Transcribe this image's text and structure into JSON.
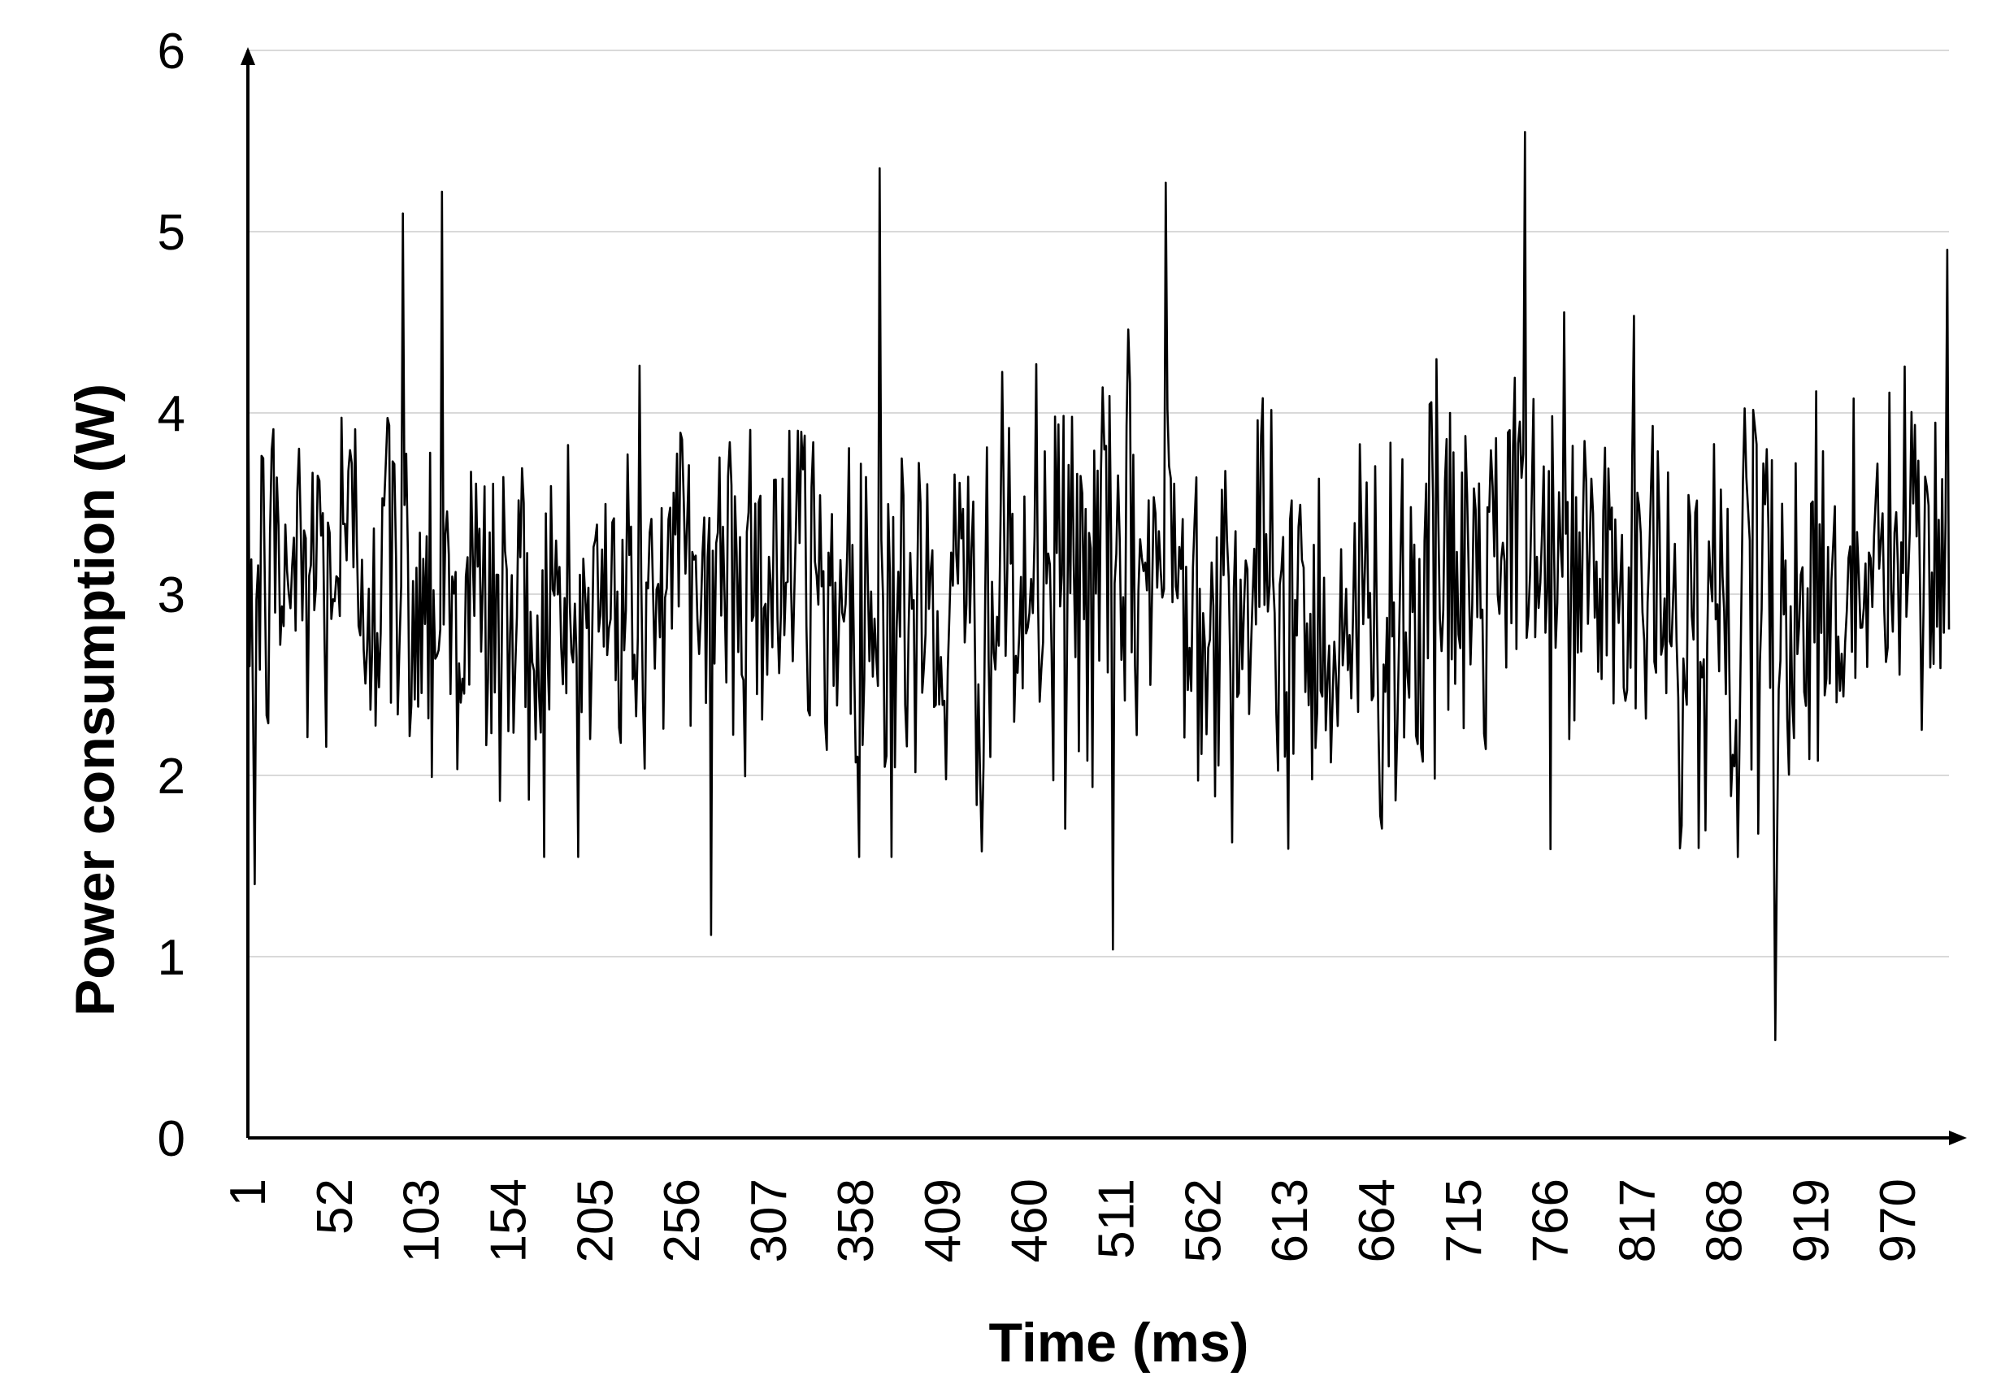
{
  "chart_data": {
    "type": "line",
    "title": "",
    "xlabel": "Time (ms)",
    "ylabel": "Power consumption (W)",
    "ylim": [
      0,
      6
    ],
    "yticks": [
      "0",
      "1",
      "2",
      "3",
      "4",
      "5",
      "6"
    ],
    "xlim": [
      1,
      1000
    ],
    "xticks": [
      "1",
      "52",
      "103",
      "154",
      "205",
      "256",
      "307",
      "358",
      "409",
      "460",
      "511",
      "562",
      "613",
      "664",
      "715",
      "766",
      "817",
      "868",
      "919",
      "970"
    ],
    "grid": "horizontal",
    "legend": "none",
    "line_color": "#000000",
    "series": [
      {
        "x_start": 1,
        "x_step": 1,
        "notable_points": [
          {
            "x": 5,
            "y": 1.4
          },
          {
            "x": 92,
            "y": 5.1
          },
          {
            "x": 115,
            "y": 5.22
          },
          {
            "x": 273,
            "y": 1.12
          },
          {
            "x": 372,
            "y": 5.35
          },
          {
            "x": 509,
            "y": 1.04
          },
          {
            "x": 540,
            "y": 5.27
          },
          {
            "x": 751,
            "y": 5.55
          },
          {
            "x": 898,
            "y": 0.54
          },
          {
            "x": 999,
            "y": 4.9
          }
        ],
        "mean": 3.0,
        "std": 0.55,
        "min": 0.54,
        "max": 5.55
      }
    ]
  }
}
